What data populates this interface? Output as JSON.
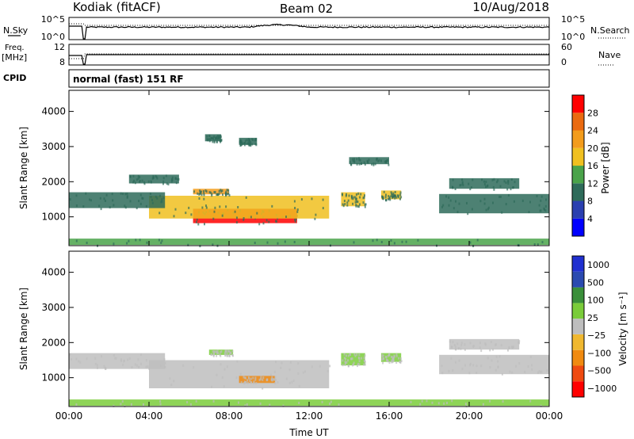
{
  "header": {
    "title": "Kodiak (fitACF)",
    "beam": "Beam 02",
    "date": "10/Aug/2018"
  },
  "nsky_panel": {
    "left_label": "N.Sky",
    "left_ticks": [
      "10^5",
      "10^0"
    ],
    "right_label": "N.Search",
    "right_ticks": [
      "10^5",
      "10^0"
    ]
  },
  "freq_panel": {
    "left_label": "Freq.",
    "left_unit": "[MHz]",
    "left_ticks": [
      "12",
      "8"
    ],
    "right_label": "Nave",
    "right_ticks": [
      "60",
      "0"
    ]
  },
  "cpid_panel": {
    "label": "CPID",
    "text": "normal (fast) 151 RF"
  },
  "x_axis": {
    "label": "Time UT",
    "ticks": [
      "00:00",
      "04:00",
      "08:00",
      "12:00",
      "16:00",
      "20:00",
      "00:00"
    ]
  },
  "colors": {
    "power_scale": [
      "#0000ff",
      "#2a3fb0",
      "#2e6b5a",
      "#4aa34a",
      "#f0c020",
      "#f39c1c",
      "#ea6a10",
      "#ff0000"
    ],
    "velocity_scale": [
      "#ff0000",
      "#ef4a10",
      "#f08a10",
      "#f0b830",
      "#bebebe",
      "#7acc3a",
      "#3a8f3a",
      "#2a4ab0",
      "#2030d0"
    ],
    "ground_scatter": "#bebebe"
  },
  "chart_data": [
    {
      "type": "heatmap",
      "name": "power",
      "ylabel": "Slant Range [km]",
      "xlabel": "Time UT",
      "x_ticks": [
        "00:00",
        "04:00",
        "08:00",
        "12:00",
        "16:00",
        "20:00",
        "00:00"
      ],
      "y_ticks": [
        1000,
        2000,
        3000,
        4000
      ],
      "ylim": [
        180,
        4600
      ],
      "xlim_hours": [
        0,
        24
      ],
      "colorbar": {
        "label": "Power [dB]",
        "ticks": [
          4,
          8,
          12,
          16,
          20,
          24,
          28
        ],
        "range": [
          0,
          32
        ]
      },
      "patches": [
        {
          "t0": 6.2,
          "t1": 11.4,
          "r0": 820,
          "r1": 1230,
          "value": 30
        },
        {
          "t0": 4.0,
          "t1": 13.0,
          "r0": 950,
          "r1": 1600,
          "value": 18
        },
        {
          "t0": 0.0,
          "t1": 4.8,
          "r0": 1250,
          "r1": 1700,
          "value": 10
        },
        {
          "t0": 6.2,
          "t1": 8.0,
          "r0": 1640,
          "r1": 1800,
          "value": 20
        },
        {
          "t0": 6.8,
          "t1": 7.6,
          "r0": 3150,
          "r1": 3350,
          "value": 8
        },
        {
          "t0": 8.5,
          "t1": 9.4,
          "r0": 3050,
          "r1": 3250,
          "value": 8
        },
        {
          "t0": 3.0,
          "t1": 5.5,
          "r0": 1950,
          "r1": 2200,
          "value": 10
        },
        {
          "t0": 13.6,
          "t1": 14.8,
          "r0": 1300,
          "r1": 1700,
          "value": 16
        },
        {
          "t0": 15.6,
          "t1": 16.6,
          "r0": 1500,
          "r1": 1750,
          "value": 16
        },
        {
          "t0": 14.0,
          "t1": 16.0,
          "r0": 2500,
          "r1": 2700,
          "value": 9
        },
        {
          "t0": 18.5,
          "t1": 24.0,
          "r0": 1100,
          "r1": 1650,
          "value": 9
        },
        {
          "t0": 19.0,
          "t1": 22.5,
          "r0": 1800,
          "r1": 2100,
          "value": 10
        },
        {
          "t0": 0.0,
          "t1": 24.0,
          "r0": 200,
          "r1": 380,
          "value": 12
        }
      ]
    },
    {
      "type": "heatmap",
      "name": "velocity",
      "ylabel": "Slant Range [km]",
      "xlabel": "Time UT",
      "x_ticks": [
        "00:00",
        "04:00",
        "08:00",
        "12:00",
        "16:00",
        "20:00",
        "00:00"
      ],
      "y_ticks": [
        1000,
        2000,
        3000,
        4000
      ],
      "ylim": [
        180,
        4600
      ],
      "xlim_hours": [
        0,
        24
      ],
      "colorbar": {
        "label": "Velocity [m s⁻¹]",
        "ticks": [
          "1000",
          "500",
          "100",
          "25",
          "−25",
          "−100",
          "−500",
          "−1000"
        ]
      },
      "patches": [
        {
          "t0": 4.0,
          "t1": 13.0,
          "r0": 700,
          "r1": 1500,
          "value": "ground"
        },
        {
          "t0": 0.0,
          "t1": 4.8,
          "r0": 1250,
          "r1": 1700,
          "value": "ground"
        },
        {
          "t0": 8.5,
          "t1": 10.3,
          "r0": 850,
          "r1": 1050,
          "value": "-100"
        },
        {
          "t0": 7.0,
          "t1": 8.2,
          "r0": 1650,
          "r1": 1800,
          "value": "100"
        },
        {
          "t0": 13.6,
          "t1": 14.8,
          "r0": 1350,
          "r1": 1700,
          "value": "100"
        },
        {
          "t0": 15.6,
          "t1": 16.6,
          "r0": 1450,
          "r1": 1700,
          "value": "100"
        },
        {
          "t0": 18.5,
          "t1": 24.0,
          "r0": 1100,
          "r1": 1650,
          "value": "ground"
        },
        {
          "t0": 19.0,
          "t1": 22.5,
          "r0": 1800,
          "r1": 2100,
          "value": "ground"
        },
        {
          "t0": 0.0,
          "t1": 24.0,
          "r0": 200,
          "r1": 380,
          "value": "100"
        }
      ]
    }
  ]
}
